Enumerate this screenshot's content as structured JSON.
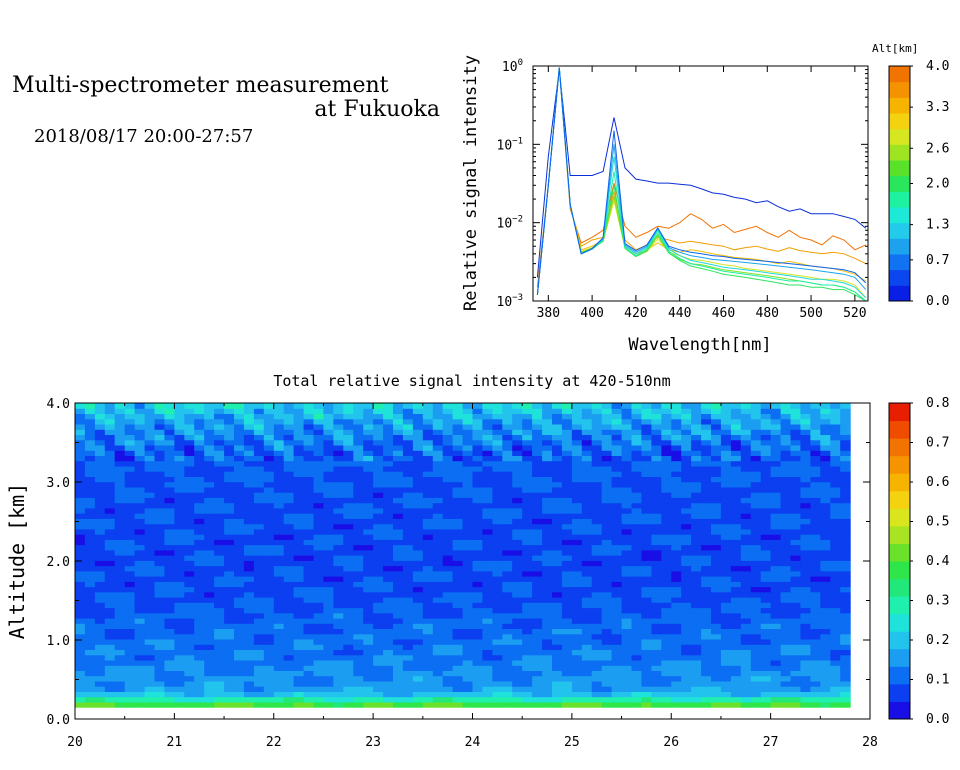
{
  "header": {
    "title_line1": "Multi-spectrometer measurement",
    "title_line2": "at Fukuoka",
    "date_range": "2018/08/17 20:00-27:57"
  },
  "chart_data": [
    {
      "type": "line",
      "scale_y": "log",
      "xlabel": "Wavelength[nm]",
      "ylabel": "Relative signal intensity",
      "xlim": [
        373,
        526
      ],
      "ylim": [
        0.001,
        1
      ],
      "x_ticks": [
        "380",
        "400",
        "420",
        "440",
        "460",
        "480",
        "500",
        "520"
      ],
      "x_tick_values": [
        380,
        400,
        420,
        440,
        460,
        480,
        500,
        520
      ],
      "y_ticks": [
        {
          "base": "10",
          "exp": "0",
          "value": 1
        },
        {
          "base": "10",
          "exp": "−1",
          "value": 0.1
        },
        {
          "base": "10",
          "exp": "−2",
          "value": 0.01
        },
        {
          "base": "10",
          "exp": "−3",
          "value": 0.001
        }
      ],
      "colorbar": {
        "title": "Alt[km]",
        "ticks": [
          "4.0",
          "3.3",
          "2.6",
          "2.0",
          "1.3",
          "0.7",
          "0.0"
        ],
        "tick_values": [
          4.0,
          3.3,
          2.6,
          2.0,
          1.3,
          0.7,
          0.0
        ],
        "range": [
          0,
          4
        ],
        "colors": [
          "#0a1fe6",
          "#0b46ee",
          "#1173f2",
          "#1da2ef",
          "#22cbea",
          "#1ce9d6",
          "#1ef2a1",
          "#29e65c",
          "#5ae22b",
          "#9fe420",
          "#d6e620",
          "#f5d210",
          "#f6b300",
          "#f59200",
          "#f17400"
        ]
      },
      "x": [
        375,
        380,
        385,
        390,
        395,
        400,
        405,
        410,
        415,
        420,
        425,
        430,
        435,
        440,
        445,
        450,
        455,
        460,
        465,
        470,
        475,
        480,
        485,
        490,
        495,
        500,
        505,
        510,
        515,
        520,
        525
      ],
      "series": [
        {
          "color": "#0a2fd8",
          "values": [
            0.002,
            0.07,
            0.9,
            0.04,
            0.04,
            0.04,
            0.045,
            0.22,
            0.05,
            0.036,
            0.034,
            0.032,
            0.032,
            0.031,
            0.03,
            0.027,
            0.024,
            0.023,
            0.021,
            0.02,
            0.018,
            0.019,
            0.016,
            0.014,
            0.015,
            0.013,
            0.013,
            0.013,
            0.012,
            0.011,
            0.0085
          ]
        },
        {
          "color": "#f27200",
          "values": [
            0.0015,
            0.03,
            0.95,
            0.015,
            0.0055,
            0.0065,
            0.008,
            0.032,
            0.009,
            0.0065,
            0.0075,
            0.009,
            0.0085,
            0.01,
            0.013,
            0.011,
            0.0085,
            0.0095,
            0.0075,
            0.0082,
            0.009,
            0.0075,
            0.0065,
            0.008,
            0.0065,
            0.006,
            0.0052,
            0.0068,
            0.006,
            0.0045,
            0.0052
          ]
        },
        {
          "color": "#f29e00",
          "values": [
            0.0012,
            0.03,
            0.95,
            0.016,
            0.005,
            0.006,
            0.0065,
            0.025,
            0.006,
            0.0045,
            0.0052,
            0.0065,
            0.006,
            0.0055,
            0.0058,
            0.0055,
            0.0052,
            0.005,
            0.0045,
            0.0048,
            0.005,
            0.0046,
            0.0043,
            0.0048,
            0.0044,
            0.0042,
            0.004,
            0.0042,
            0.004,
            0.0035,
            0.003
          ]
        },
        {
          "color": "#f4bf00",
          "values": [
            0.0012,
            0.03,
            0.95,
            0.016,
            0.0045,
            0.005,
            0.006,
            0.021,
            0.005,
            0.004,
            0.0045,
            0.0055,
            0.0045,
            0.0042,
            0.0045,
            0.0043,
            0.004,
            0.0038,
            0.0036,
            0.0035,
            0.0034,
            0.0032,
            0.003,
            0.0032,
            0.003,
            0.0028,
            0.0027,
            0.0026,
            0.0024,
            0.0022,
            0.0018
          ]
        },
        {
          "color": "#d7e51e",
          "values": [
            0.0012,
            0.03,
            0.95,
            0.017,
            0.0043,
            0.0048,
            0.0058,
            0.019,
            0.0048,
            0.0038,
            0.0043,
            0.0062,
            0.0042,
            0.0038,
            0.0034,
            0.0033,
            0.0031,
            0.0029,
            0.0028,
            0.0026,
            0.0025,
            0.0024,
            0.0023,
            0.0022,
            0.0021,
            0.002,
            0.0019,
            0.0019,
            0.0018,
            0.0016,
            0.0011
          ]
        },
        {
          "color": "#7fe028",
          "values": [
            0.0012,
            0.03,
            0.95,
            0.017,
            0.0042,
            0.0047,
            0.0058,
            0.022,
            0.0047,
            0.0037,
            0.0043,
            0.0068,
            0.0041,
            0.0034,
            0.003,
            0.0029,
            0.0027,
            0.0025,
            0.0024,
            0.0023,
            0.0022,
            0.0021,
            0.002,
            0.0019,
            0.0018,
            0.0017,
            0.0016,
            0.0016,
            0.0015,
            0.0013,
            0.001
          ]
        },
        {
          "color": "#2ee55d",
          "values": [
            0.0012,
            0.03,
            0.95,
            0.017,
            0.0041,
            0.0046,
            0.0058,
            0.03,
            0.0047,
            0.0037,
            0.0044,
            0.0072,
            0.0041,
            0.0033,
            0.0028,
            0.0026,
            0.0024,
            0.0022,
            0.0021,
            0.002,
            0.0019,
            0.0018,
            0.0017,
            0.0016,
            0.0016,
            0.0015,
            0.0015,
            0.0014,
            0.0014,
            0.0012,
            0.001
          ]
        },
        {
          "color": "#1cefa6",
          "values": [
            0.0012,
            0.03,
            0.95,
            0.017,
            0.004,
            0.0046,
            0.006,
            0.045,
            0.0048,
            0.0038,
            0.0046,
            0.0078,
            0.0043,
            0.0035,
            0.003,
            0.0028,
            0.0026,
            0.0024,
            0.0023,
            0.0022,
            0.0021,
            0.002,
            0.0019,
            0.0018,
            0.0018,
            0.0017,
            0.0016,
            0.0016,
            0.0015,
            0.0013,
            0.001
          ]
        },
        {
          "color": "#1ed8de",
          "values": [
            0.0012,
            0.03,
            0.95,
            0.017,
            0.004,
            0.0046,
            0.0062,
            0.07,
            0.005,
            0.004,
            0.0048,
            0.0082,
            0.0046,
            0.0038,
            0.0033,
            0.0031,
            0.0029,
            0.0027,
            0.0026,
            0.0025,
            0.0024,
            0.0023,
            0.0022,
            0.0021,
            0.002,
            0.0019,
            0.0019,
            0.0018,
            0.0017,
            0.0015,
            0.0011
          ]
        },
        {
          "color": "#1aa4ee",
          "values": [
            0.0012,
            0.03,
            0.95,
            0.017,
            0.004,
            0.0046,
            0.0063,
            0.1,
            0.0052,
            0.0042,
            0.005,
            0.0085,
            0.0048,
            0.0042,
            0.0038,
            0.0036,
            0.0034,
            0.0033,
            0.0032,
            0.0031,
            0.003,
            0.0029,
            0.0028,
            0.0027,
            0.0026,
            0.0025,
            0.0024,
            0.0023,
            0.0022,
            0.002,
            0.0014
          ]
        },
        {
          "color": "#0f63ee",
          "values": [
            0.0012,
            0.03,
            0.95,
            0.017,
            0.004,
            0.0047,
            0.0064,
            0.15,
            0.0054,
            0.0044,
            0.0052,
            0.0086,
            0.005,
            0.0045,
            0.0042,
            0.004,
            0.0038,
            0.0037,
            0.0035,
            0.0034,
            0.0033,
            0.0032,
            0.0031,
            0.003,
            0.0029,
            0.0028,
            0.0027,
            0.0026,
            0.0025,
            0.0023,
            0.0017
          ]
        }
      ]
    },
    {
      "type": "heatmap",
      "title": "Total relative signal intensity at 420-510nm",
      "ylabel": "Altitude [km]",
      "xlim": [
        20,
        28
      ],
      "ylim": [
        0,
        4
      ],
      "x_ticks": [
        "20",
        "21",
        "22",
        "23",
        "24",
        "25",
        "26",
        "27",
        "28"
      ],
      "x_tick_values": [
        20,
        21,
        22,
        23,
        24,
        25,
        26,
        27,
        28
      ],
      "y_ticks": [
        "0.0",
        "1.0",
        "2.0",
        "3.0",
        "4.0"
      ],
      "y_tick_values": [
        0,
        1,
        2,
        3,
        4
      ],
      "data_extent": {
        "x": [
          20,
          27.8
        ],
        "y": [
          0.15,
          4.0
        ]
      },
      "colorbar": {
        "ticks": [
          "0.8",
          "0.7",
          "0.6",
          "0.5",
          "0.4",
          "0.3",
          "0.2",
          "0.1",
          "0.0"
        ],
        "tick_values": [
          0.8,
          0.7,
          0.6,
          0.5,
          0.4,
          0.3,
          0.2,
          0.1,
          0.0
        ],
        "range": [
          0,
          0.8
        ],
        "colors": [
          "#1a0ee6",
          "#0b3ff0",
          "#0b6ef3",
          "#1b9df2",
          "#22c4ee",
          "#1fe2db",
          "#1ff0ad",
          "#22e87a",
          "#2ee64a",
          "#6ae22a",
          "#a8e422",
          "#d9e61e",
          "#f5d20f",
          "#f6b400",
          "#f59400",
          "#f37300",
          "#ef4c00",
          "#e81e00"
        ]
      },
      "altitude_profile": [
        {
          "alt": 0.15,
          "value": 0.45
        },
        {
          "alt": 0.22,
          "value": 0.33
        },
        {
          "alt": 0.3,
          "value": 0.2
        },
        {
          "alt": 0.4,
          "value": 0.15
        },
        {
          "alt": 0.8,
          "value": 0.12
        },
        {
          "alt": 1.2,
          "value": 0.1
        },
        {
          "alt": 1.6,
          "value": 0.08
        },
        {
          "alt": 2.0,
          "value": 0.075
        },
        {
          "alt": 2.5,
          "value": 0.08
        },
        {
          "alt": 3.0,
          "value": 0.085
        },
        {
          "alt": 3.4,
          "value": 0.1
        },
        {
          "alt": 3.8,
          "value": 0.17
        },
        {
          "alt": 4.0,
          "value": 0.22
        }
      ]
    }
  ]
}
